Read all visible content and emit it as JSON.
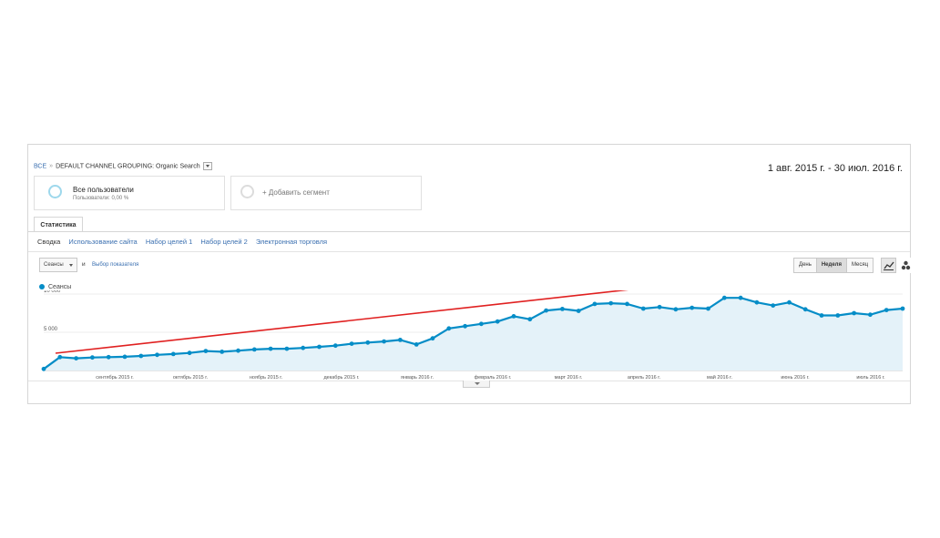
{
  "breadcrumb": {
    "all": "ВСЕ",
    "separator": "»",
    "grouping": "DEFAULT CHANNEL GROUPING: Organic Search"
  },
  "date_range": "1 авг. 2015 г. - 30 июл. 2016 г.",
  "segments": [
    {
      "name": "Все пользователи",
      "sub": "Пользователи: 0,00 %"
    },
    {
      "name": "+ Добавить сегмент"
    }
  ],
  "main_tab": "Статистика",
  "subtabs": [
    "Сводка",
    "Использование сайта",
    "Набор целей 1",
    "Набор целей 2",
    "Электронная торговля"
  ],
  "metric_select": "Сеансы",
  "and_label": "и",
  "pick_metric": "Выбор показателя",
  "period_buttons": [
    "День",
    "Неделя",
    "Месяц"
  ],
  "active_period": "Неделя",
  "chart_data": {
    "type": "area",
    "series": [
      {
        "name": "Сеансы",
        "color": "#058dc7",
        "values": [
          200,
          1750,
          1600,
          1700,
          1750,
          1800,
          1900,
          2050,
          2150,
          2300,
          2550,
          2450,
          2600,
          2750,
          2850,
          2850,
          2950,
          3100,
          3250,
          3500,
          3650,
          3800,
          4000,
          3400,
          4200,
          5500,
          5800,
          6100,
          6400,
          7100,
          6700,
          7850,
          8050,
          7800,
          8700,
          8800,
          8700,
          8100,
          8300,
          8000,
          8200,
          8100,
          9500,
          9500,
          8900,
          8500,
          8900,
          8000,
          7200,
          7200,
          7500,
          7300,
          7900,
          8100
        ]
      }
    ],
    "x_labels": [
      "сентябрь 2015 г.",
      "октябрь 2015 г.",
      "ноябрь 2015 г.",
      "декабрь 2015 г.",
      "январь 2016 г.",
      "февраль 2016 г.",
      "март 2016 г.",
      "апрель 2016 г.",
      "май 2016 г.",
      "июнь 2016 г.",
      "июль 2016 г."
    ],
    "y_ticks": [
      {
        "value": 5000,
        "label": "5 000"
      },
      {
        "value": 10000,
        "label": "10 000"
      }
    ],
    "ylim": [
      0,
      10000
    ],
    "legend_position": "top-left",
    "annotation": "red trend arrow rising left to right",
    "annotation_color": "#e02020",
    "area_fill": "#e4f2f9"
  }
}
